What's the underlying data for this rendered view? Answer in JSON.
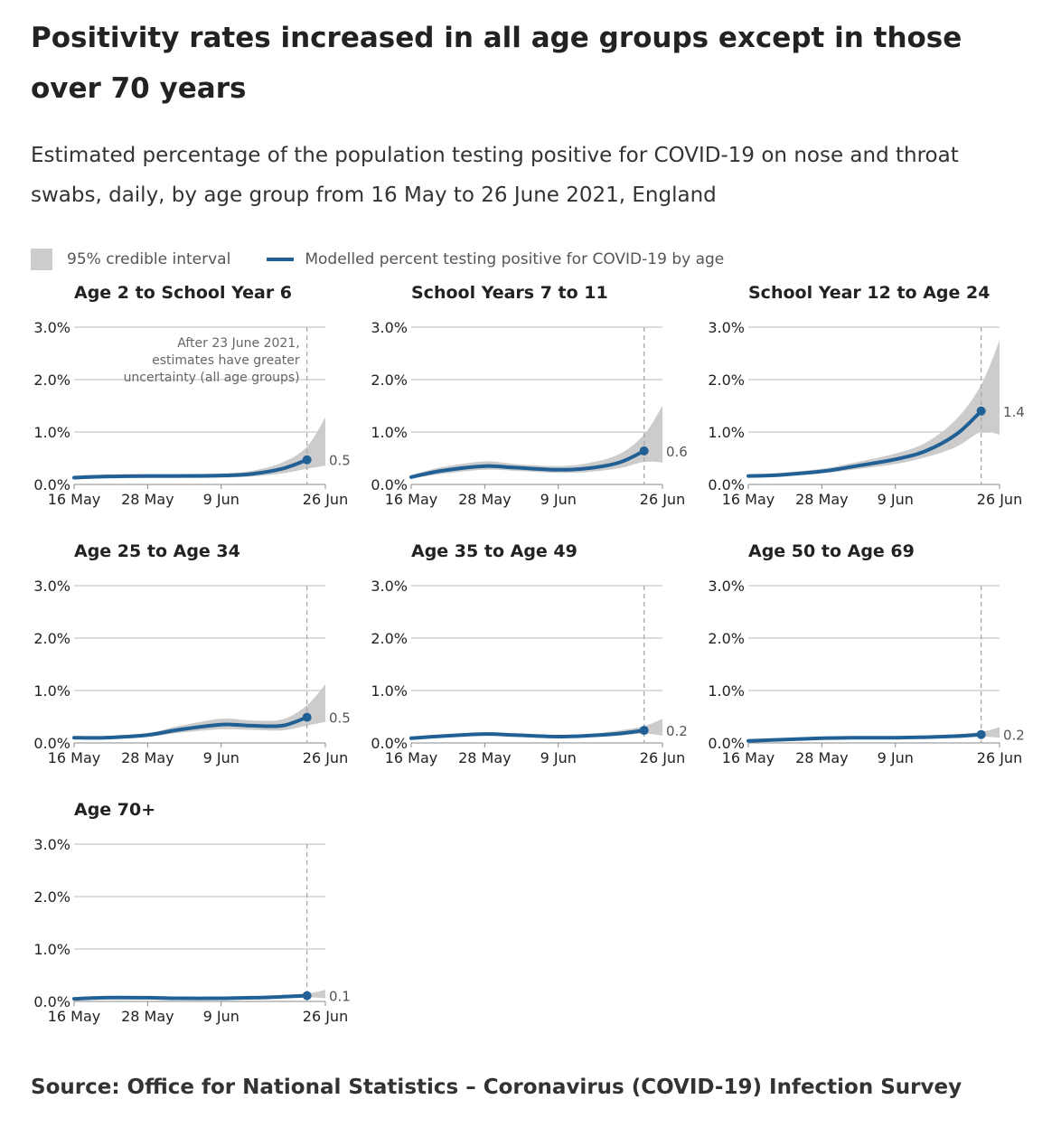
{
  "title": "Positivity rates increased in all age groups except in those over 70 years",
  "subtitle": "Estimated percentage of the population testing positive for COVID-19 on nose and throat swabs, daily, by age group from 16 May to 26 June 2021, England",
  "legend": {
    "ci_label": "95% credible interval",
    "line_label": "Modelled percent testing positive for COVID-19 by age"
  },
  "source": "Source: Office for National Statistics – Coronavirus (COVID-19) Infection Survey",
  "colors": {
    "line": "#206095",
    "interval": "#cccccc",
    "grid": "#bbbbbb",
    "marker_line": "#aaaaaa"
  },
  "chart_data": {
    "type": "line",
    "x_ticks": [
      "16 May",
      "28 May",
      "9 Jun",
      "26 Jun"
    ],
    "x_dates": [
      "2021-05-16",
      "2021-05-21",
      "2021-05-28",
      "2021-06-02",
      "2021-06-09",
      "2021-06-14",
      "2021-06-19",
      "2021-06-23"
    ],
    "x_range": [
      "2021-05-16",
      "2021-06-26"
    ],
    "y_ticks": [
      "0.0%",
      "1.0%",
      "2.0%",
      "3.0%"
    ],
    "ylim": [
      0,
      3
    ],
    "y_unit": "%",
    "vline_date": "2021-06-23",
    "annotation": [
      "After 23 June 2021,",
      "estimates have greater",
      "uncertainty (all age groups)"
    ],
    "panels": [
      {
        "title": "Age 2 to School Year 6",
        "end_label": "0.5",
        "values": [
          0.13,
          0.15,
          0.16,
          0.16,
          0.17,
          0.2,
          0.3,
          0.47
        ],
        "lower": [
          0.1,
          0.12,
          0.13,
          0.13,
          0.13,
          0.15,
          0.21,
          0.3
        ],
        "upper": [
          0.17,
          0.19,
          0.2,
          0.2,
          0.21,
          0.26,
          0.42,
          0.72
        ],
        "end_lower": 0.36,
        "end_upper": 1.28
      },
      {
        "title": "School Years 7 to 11",
        "end_label": "0.6",
        "values": [
          0.14,
          0.26,
          0.35,
          0.32,
          0.28,
          0.31,
          0.42,
          0.64
        ],
        "lower": [
          0.11,
          0.2,
          0.28,
          0.26,
          0.22,
          0.24,
          0.31,
          0.43
        ],
        "upper": [
          0.18,
          0.33,
          0.44,
          0.39,
          0.35,
          0.41,
          0.58,
          0.95
        ],
        "end_lower": 0.42,
        "end_upper": 1.5
      },
      {
        "title": "School Year 12 to Age 24",
        "end_label": "1.4",
        "values": [
          0.16,
          0.18,
          0.25,
          0.34,
          0.48,
          0.64,
          0.96,
          1.4
        ],
        "lower": [
          0.13,
          0.15,
          0.21,
          0.28,
          0.39,
          0.52,
          0.72,
          1.0
        ],
        "upper": [
          0.19,
          0.22,
          0.3,
          0.41,
          0.59,
          0.8,
          1.25,
          1.9
        ],
        "end_lower": 0.95,
        "end_upper": 2.75
      },
      {
        "title": "Age 25 to Age 34",
        "end_label": "0.5",
        "values": [
          0.1,
          0.1,
          0.15,
          0.25,
          0.35,
          0.33,
          0.33,
          0.49
        ],
        "lower": [
          0.08,
          0.08,
          0.12,
          0.19,
          0.26,
          0.25,
          0.24,
          0.33
        ],
        "upper": [
          0.13,
          0.13,
          0.19,
          0.32,
          0.46,
          0.43,
          0.45,
          0.72
        ],
        "end_lower": 0.4,
        "end_upper": 1.12
      },
      {
        "title": "Age 35 to Age 49",
        "end_label": "0.2",
        "values": [
          0.09,
          0.13,
          0.17,
          0.15,
          0.12,
          0.14,
          0.18,
          0.24
        ],
        "lower": [
          0.07,
          0.11,
          0.14,
          0.12,
          0.1,
          0.11,
          0.14,
          0.18
        ],
        "upper": [
          0.11,
          0.16,
          0.2,
          0.18,
          0.15,
          0.17,
          0.24,
          0.32
        ],
        "end_lower": 0.14,
        "end_upper": 0.46
      },
      {
        "title": "Age 50 to Age 69",
        "end_label": "0.2",
        "values": [
          0.04,
          0.06,
          0.09,
          0.1,
          0.1,
          0.11,
          0.13,
          0.16
        ],
        "lower": [
          0.03,
          0.05,
          0.07,
          0.08,
          0.08,
          0.09,
          0.1,
          0.12
        ],
        "upper": [
          0.05,
          0.08,
          0.11,
          0.12,
          0.12,
          0.14,
          0.17,
          0.21
        ],
        "end_lower": 0.1,
        "end_upper": 0.3
      },
      {
        "title": "Age 70+",
        "end_label": "0.1",
        "values": [
          0.05,
          0.07,
          0.07,
          0.06,
          0.06,
          0.07,
          0.09,
          0.11
        ],
        "lower": [
          0.04,
          0.05,
          0.05,
          0.05,
          0.05,
          0.05,
          0.07,
          0.08
        ],
        "upper": [
          0.06,
          0.09,
          0.09,
          0.08,
          0.08,
          0.09,
          0.12,
          0.15
        ],
        "end_lower": 0.06,
        "end_upper": 0.22
      }
    ]
  }
}
